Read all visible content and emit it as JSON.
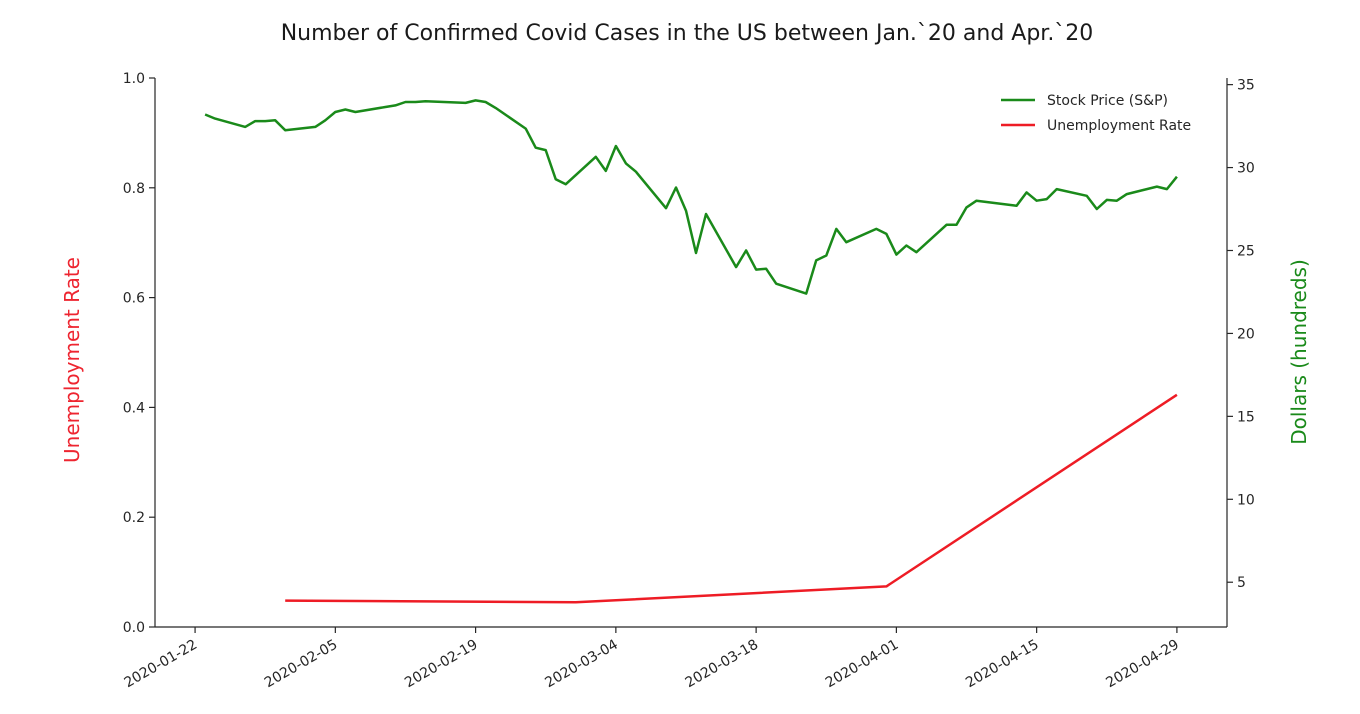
{
  "colors": {
    "stock": "#1a8a1a",
    "unemployment": "#ee1c25",
    "left_axis_label": "#ee2530",
    "right_axis_label": "#1a8a1a",
    "axis": "#262626"
  },
  "chart_data": {
    "type": "line",
    "title": "Number of Confirmed Covid Cases in the US between Jan.`20 and Apr.`20",
    "xlabel": "",
    "ylabel_left": "Unemployment Rate",
    "ylabel_right": "Dollars (hundreds)",
    "x_ticks": [
      "2020-01-22",
      "2020-02-05",
      "2020-02-19",
      "2020-03-04",
      "2020-03-18",
      "2020-04-01",
      "2020-04-15",
      "2020-04-29"
    ],
    "xlim": [
      "2020-01-18",
      "2020-05-04"
    ],
    "ylim_left": [
      0.0,
      1.0
    ],
    "ylim_right": [
      2.3,
      35.4
    ],
    "y_ticks_left": [
      "0.0",
      "0.2",
      "0.4",
      "0.6",
      "0.8",
      "1.0"
    ],
    "y_ticks_right": [
      "5",
      "10",
      "15",
      "20",
      "25",
      "30",
      "35"
    ],
    "grid": false,
    "legend_position": "top-right",
    "legend": [
      "Stock Price (S&P)",
      "Unemployment Rate"
    ],
    "series": [
      {
        "name": "Stock Price (S&P)",
        "axis": "right",
        "x": [
          "2020-01-23",
          "2020-01-24",
          "2020-01-27",
          "2020-01-28",
          "2020-01-29",
          "2020-01-30",
          "2020-01-31",
          "2020-02-03",
          "2020-02-04",
          "2020-02-05",
          "2020-02-06",
          "2020-02-07",
          "2020-02-10",
          "2020-02-11",
          "2020-02-12",
          "2020-02-13",
          "2020-02-14",
          "2020-02-18",
          "2020-02-19",
          "2020-02-20",
          "2020-02-21",
          "2020-02-24",
          "2020-02-25",
          "2020-02-26",
          "2020-02-27",
          "2020-02-28",
          "2020-03-02",
          "2020-03-03",
          "2020-03-04",
          "2020-03-05",
          "2020-03-06",
          "2020-03-09",
          "2020-03-10",
          "2020-03-11",
          "2020-03-12",
          "2020-03-13",
          "2020-03-16",
          "2020-03-17",
          "2020-03-18",
          "2020-03-19",
          "2020-03-20",
          "2020-03-23",
          "2020-03-24",
          "2020-03-25",
          "2020-03-26",
          "2020-03-27",
          "2020-03-30",
          "2020-03-31",
          "2020-04-01",
          "2020-04-02",
          "2020-04-03",
          "2020-04-06",
          "2020-04-07",
          "2020-04-08",
          "2020-04-09",
          "2020-04-13",
          "2020-04-14",
          "2020-04-15",
          "2020-04-16",
          "2020-04-17",
          "2020-04-20",
          "2020-04-21",
          "2020-04-22",
          "2020-04-23",
          "2020-04-24",
          "2020-04-27",
          "2020-04-28",
          "2020-04-29"
        ],
        "values": [
          33.2,
          32.95,
          32.45,
          32.8,
          32.8,
          32.85,
          32.25,
          32.45,
          32.85,
          33.35,
          33.5,
          33.35,
          33.65,
          33.75,
          33.95,
          33.95,
          34.0,
          33.9,
          34.05,
          33.95,
          33.6,
          32.35,
          31.2,
          31.05,
          29.3,
          29.0,
          30.65,
          29.8,
          31.3,
          30.25,
          29.75,
          27.55,
          28.8,
          27.4,
          24.85,
          27.2,
          24.0,
          25.0,
          23.85,
          23.9,
          23.0,
          22.4,
          24.4,
          24.7,
          26.3,
          25.5,
          26.3,
          26.0,
          24.75,
          25.3,
          24.9,
          26.55,
          26.55,
          27.6,
          28.0,
          27.7,
          28.5,
          28.0,
          28.1,
          28.7,
          28.3,
          27.5,
          28.05,
          28.0,
          28.4,
          28.85,
          28.7,
          29.45
        ]
      },
      {
        "name": "Unemployment Rate",
        "axis": "left",
        "x": [
          "2020-01-31",
          "2020-02-29",
          "2020-03-31",
          "2020-04-29"
        ],
        "values": [
          0.048,
          0.045,
          0.074,
          0.423
        ]
      }
    ]
  }
}
